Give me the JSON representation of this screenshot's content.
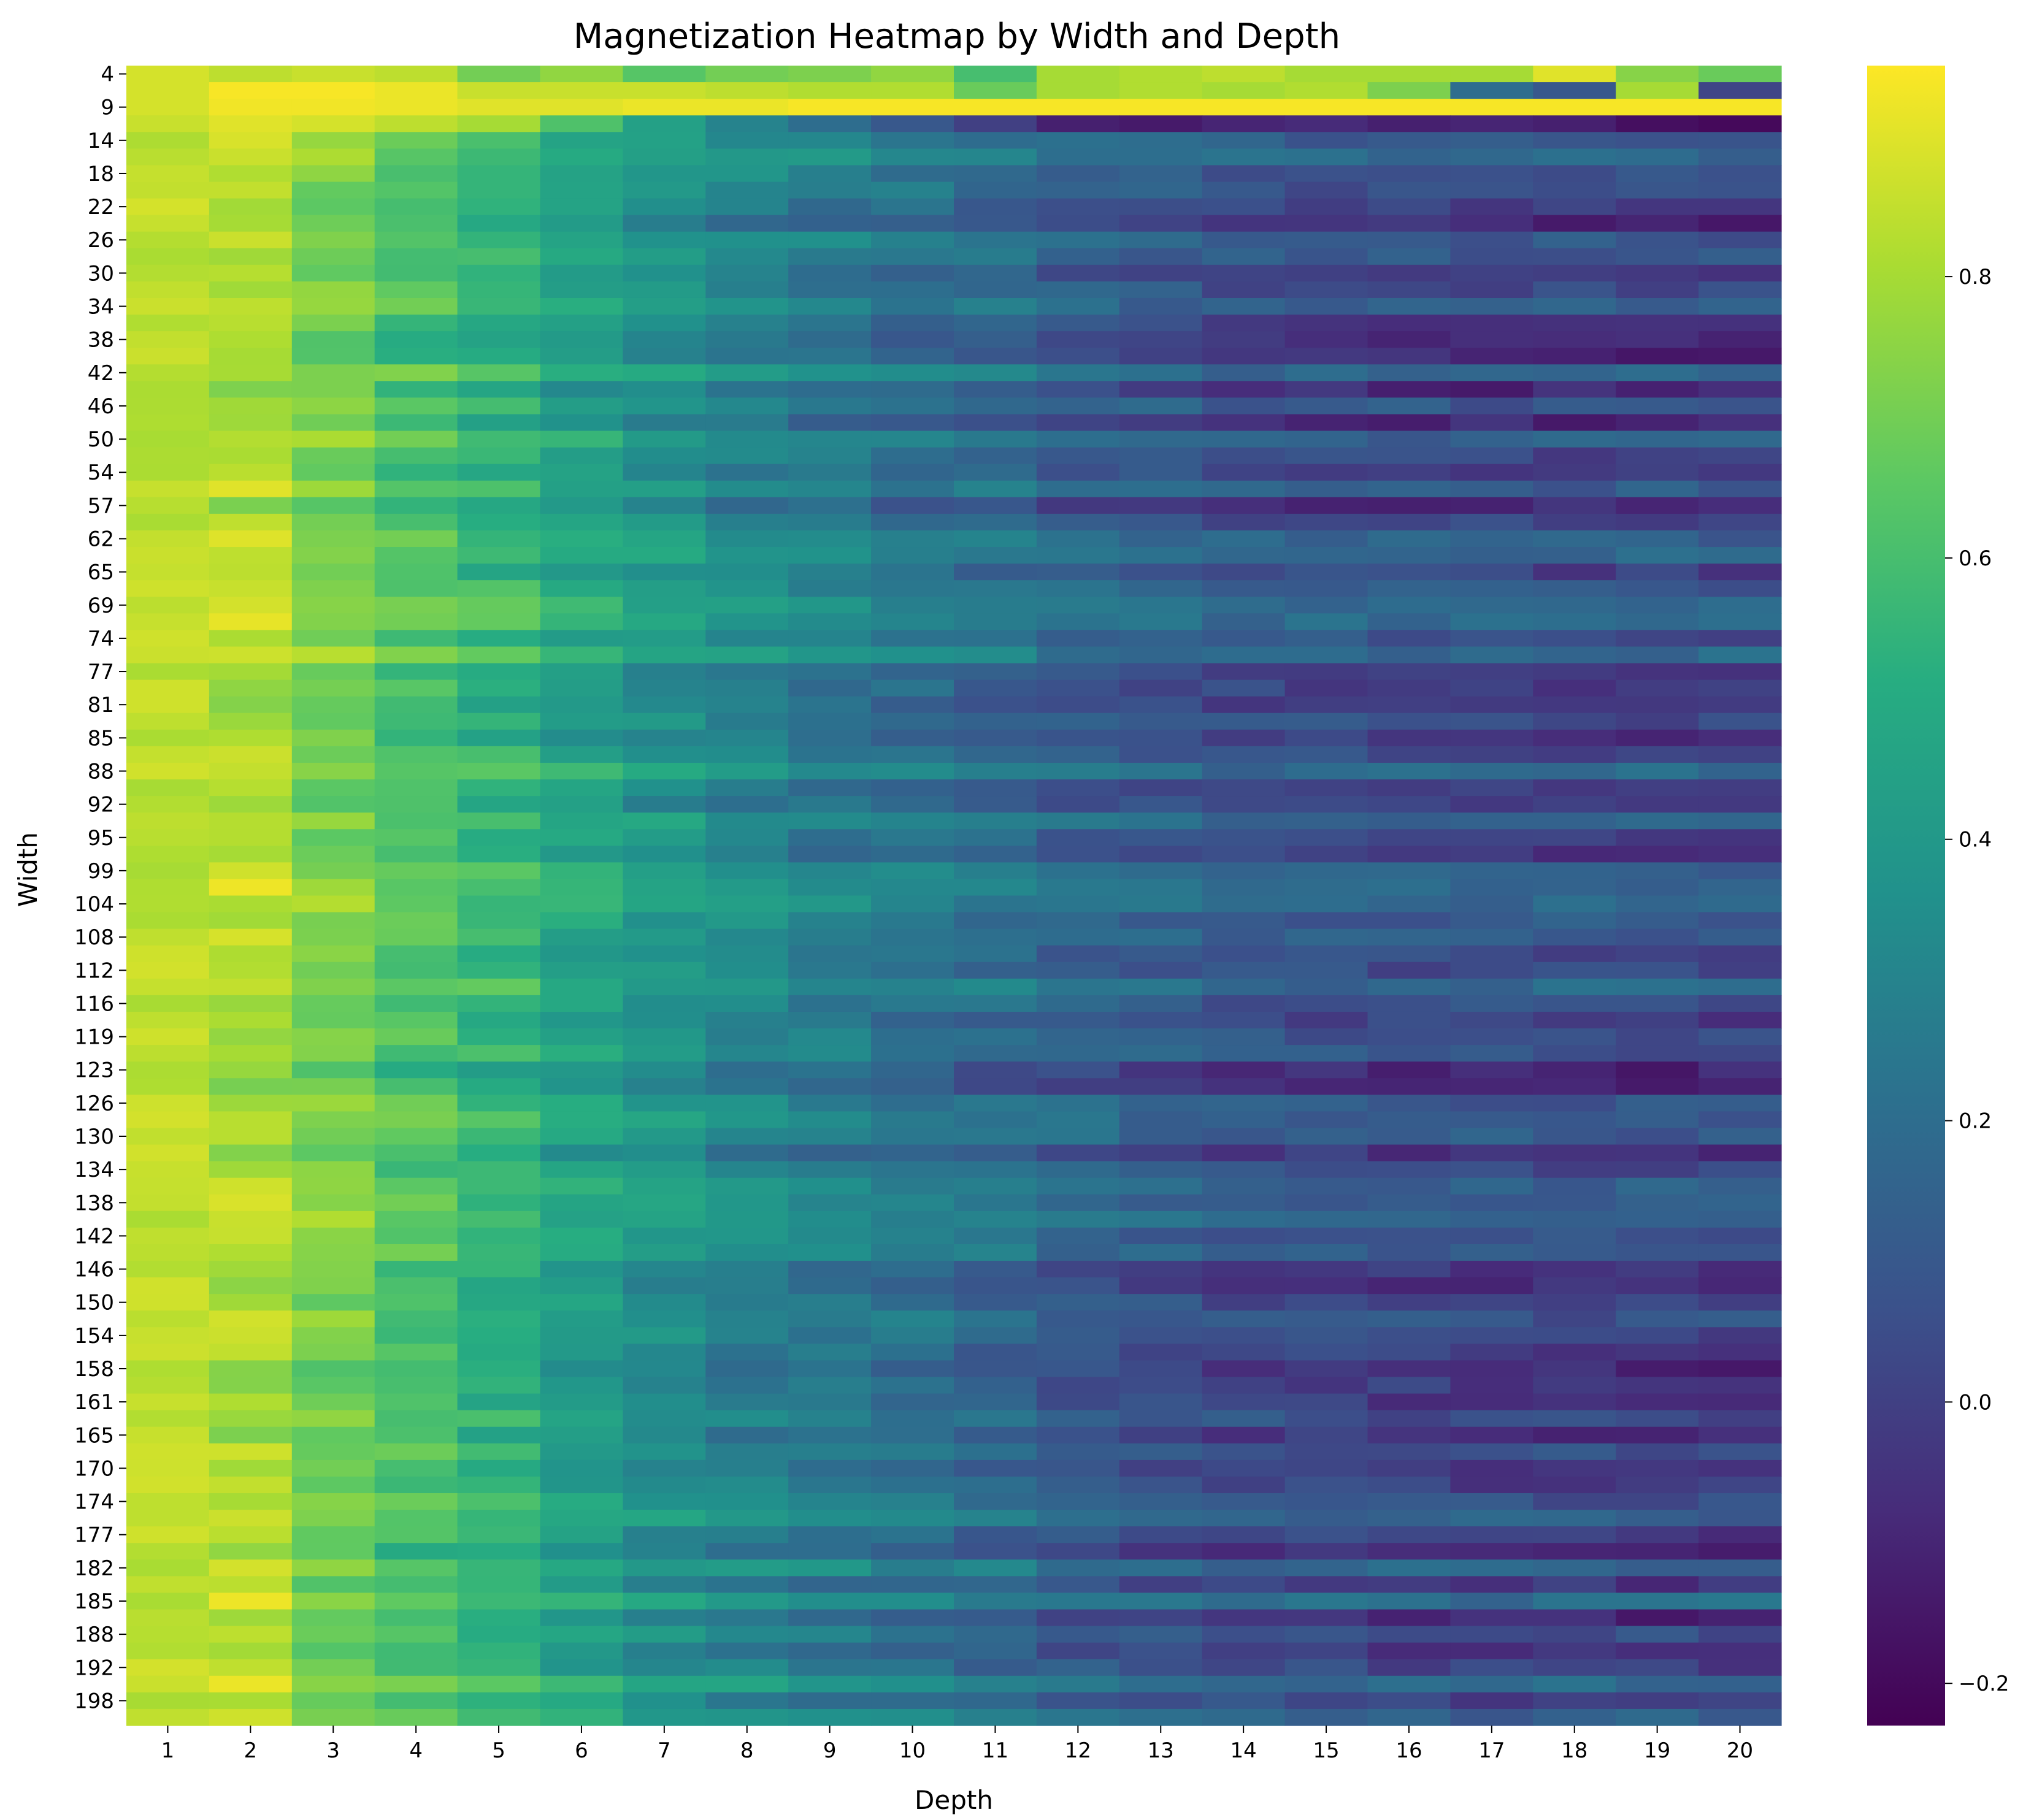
{
  "chart_data": {
    "type": "heatmap",
    "title": "Magnetization Heatmap by Width and Depth",
    "xlabel": "Depth",
    "ylabel": "Width",
    "colormap": "viridis",
    "x_tick_labels": [
      "1",
      "2",
      "3",
      "4",
      "5",
      "6",
      "7",
      "8",
      "9",
      "10",
      "11",
      "12",
      "13",
      "14",
      "15",
      "16",
      "17",
      "18",
      "19",
      "20"
    ],
    "y_tick_labels": [
      "4",
      "9",
      "14",
      "18",
      "22",
      "26",
      "30",
      "34",
      "38",
      "42",
      "46",
      "50",
      "54",
      "57",
      "62",
      "65",
      "69",
      "74",
      "77",
      "81",
      "85",
      "88",
      "92",
      "95",
      "99",
      "104",
      "108",
      "112",
      "116",
      "119",
      "123",
      "126",
      "130",
      "134",
      "138",
      "142",
      "146",
      "150",
      "154",
      "158",
      "161",
      "165",
      "170",
      "174",
      "177",
      "182",
      "185",
      "188",
      "192",
      "198"
    ],
    "colorbar": {
      "vmin": -0.23,
      "vmax": 0.95,
      "tick_labels": [
        "0.8",
        "0.6",
        "0.4",
        "0.2",
        "0.0",
        "−0.2"
      ],
      "tick_values": [
        0.8,
        0.6,
        0.4,
        0.2,
        0.0,
        -0.2
      ]
    },
    "row_count": 100,
    "depth_profile": [
      0.86,
      0.82,
      0.72,
      0.62,
      0.55,
      0.45,
      0.38,
      0.32,
      0.27,
      0.23,
      0.19,
      0.14,
      0.11,
      0.08,
      0.07,
      0.06,
      0.05,
      0.05,
      0.04,
      0.04
    ],
    "special_rows": [
      {
        "index": 0,
        "values": [
          0.88,
          0.84,
          0.86,
          0.84,
          0.7,
          0.76,
          0.64,
          0.7,
          0.72,
          0.76,
          0.6,
          0.8,
          0.82,
          0.84,
          0.8,
          0.8,
          0.8,
          0.9,
          0.74,
          0.68
        ]
      },
      {
        "index": 1,
        "values": [
          0.88,
          0.94,
          0.94,
          0.92,
          0.86,
          0.86,
          0.86,
          0.84,
          0.82,
          0.82,
          0.68,
          0.8,
          0.82,
          0.8,
          0.82,
          0.72,
          0.2,
          0.1,
          0.8,
          0.02
        ]
      },
      {
        "index": 2,
        "values": [
          0.88,
          0.93,
          0.93,
          0.92,
          0.9,
          0.9,
          0.92,
          0.92,
          0.94,
          0.94,
          0.94,
          0.94,
          0.94,
          0.94,
          0.94,
          0.94,
          0.94,
          0.94,
          0.94,
          0.94
        ]
      },
      {
        "index": 3,
        "values": [
          0.86,
          0.9,
          0.88,
          0.84,
          0.8,
          0.62,
          0.44,
          0.3,
          0.2,
          0.1,
          0.0,
          -0.12,
          -0.14,
          -0.1,
          -0.08,
          -0.12,
          -0.1,
          -0.12,
          -0.18,
          -0.2
        ]
      }
    ]
  }
}
